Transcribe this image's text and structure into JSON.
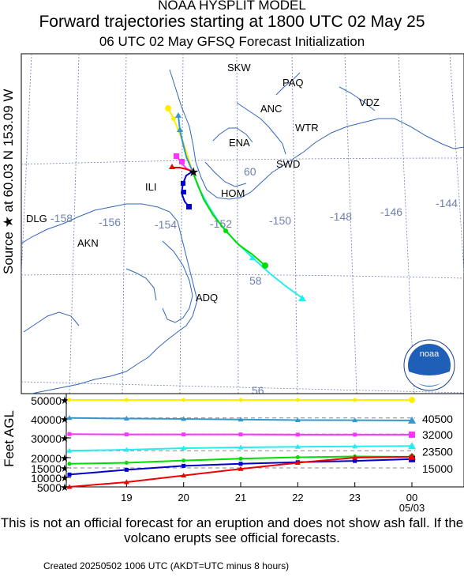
{
  "header": {
    "model": "NOAA HYSPLIT MODEL",
    "title": "Forward trajectories starting at 1800 UTC 02 May 25",
    "subtitle": "06 UTC 02 May    GFSQ  Forecast Initialization"
  },
  "source_label": "Source ★ at   60.03 N  153.09 W",
  "map": {
    "stations": [
      "SKW",
      "PAQ",
      "ANC",
      "VDZ",
      "WTR",
      "ENA",
      "SWD",
      "ILI",
      "HOM",
      "DLG",
      "AKN",
      "ADQ"
    ],
    "lon_labels": [
      "-158",
      "-156",
      "-154",
      "-152",
      "-150",
      "-148",
      "-146",
      "-144"
    ],
    "lat_labels": [
      "60",
      "58",
      "56"
    ],
    "logo_text": "noaa"
  },
  "chart_data": {
    "type": "line",
    "title": "Forward trajectories starting at 1800 UTC 02 May 25",
    "ylabel": "Feet AGL",
    "y_ticks": [
      5000,
      10000,
      15000,
      20000,
      30000,
      40000,
      50000
    ],
    "x_ticks": [
      "19",
      "20",
      "21",
      "22",
      "23",
      "00"
    ],
    "x_date_label": "05/03",
    "right_labels": [
      "40500",
      "32000",
      "23500",
      "15000"
    ],
    "dashed_levels": [
      40500,
      32000,
      23500,
      15000
    ],
    "x": [
      18,
      19,
      20,
      21,
      22,
      23,
      24
    ],
    "series": [
      {
        "color": "#ffee00",
        "marker": "circle",
        "values": [
          50000,
          50000,
          50000,
          50000,
          50000,
          50000,
          50000
        ]
      },
      {
        "color": "#3399cc",
        "marker": "triangle",
        "values": [
          40500,
          40200,
          40000,
          39700,
          39400,
          39300,
          39200
        ]
      },
      {
        "color": "#ff33ff",
        "marker": "square",
        "values": [
          32000,
          31800,
          31800,
          31800,
          31700,
          31700,
          31700
        ]
      },
      {
        "color": "#22eeee",
        "marker": "triangle",
        "values": [
          23500,
          24000,
          24800,
          25200,
          25500,
          25700,
          25900
        ]
      },
      {
        "color": "#00dd00",
        "marker": "circle",
        "values": [
          17000,
          17500,
          18600,
          19500,
          20200,
          20600,
          20400
        ]
      },
      {
        "color": "#0000cc",
        "marker": "square",
        "values": [
          11500,
          14000,
          16000,
          17000,
          17800,
          18400,
          19300
        ]
      },
      {
        "color": "#ee0000",
        "marker": "triangle",
        "values": [
          5000,
          7500,
          11000,
          14500,
          17500,
          20000,
          20500
        ]
      }
    ]
  },
  "disclaimer": "This is not an official forecast for an eruption and does not show ash fall. If the volcano erupts see official forecasts.",
  "created": "Created 20250502 1006 UTC        (AKDT=UTC minus 8 hours)"
}
